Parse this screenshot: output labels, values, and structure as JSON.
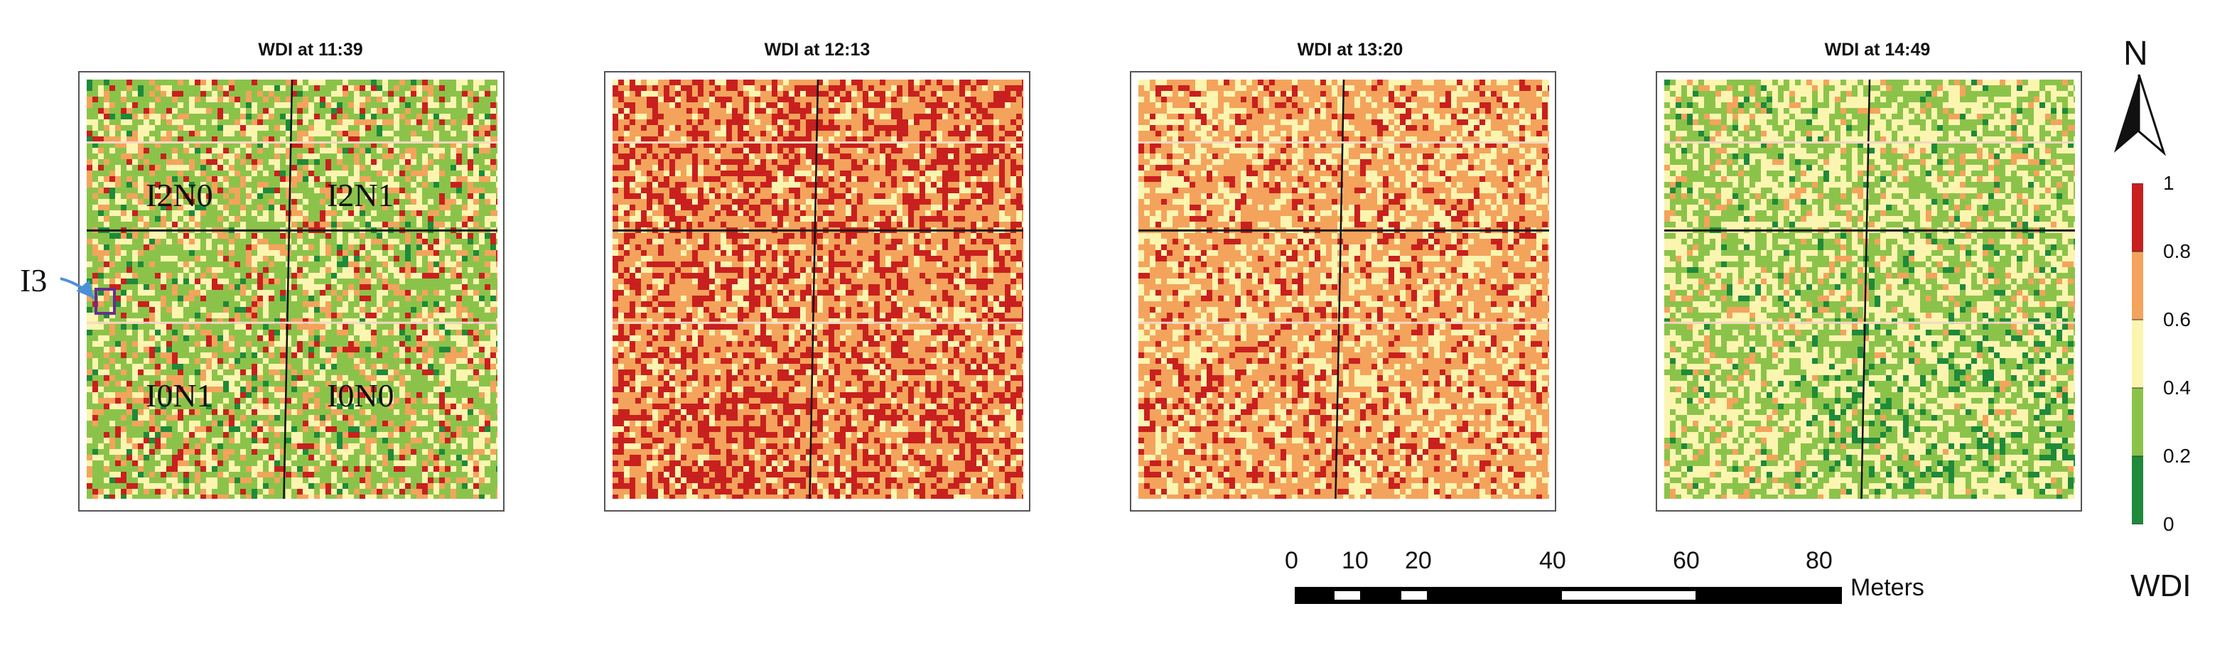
{
  "panels": [
    {
      "title": "WDI at 11:39",
      "mix": [
        0.07,
        0.48,
        0.24,
        0.15,
        0.06
      ]
    },
    {
      "title": "WDI at 12:13",
      "mix": [
        0.0,
        0.0,
        0.17,
        0.48,
        0.35
      ]
    },
    {
      "title": "WDI at 13:20",
      "mix": [
        0.0,
        0.0,
        0.32,
        0.53,
        0.15
      ]
    },
    {
      "title": "WDI at 14:49",
      "mix": [
        0.05,
        0.42,
        0.43,
        0.1,
        0.0
      ]
    }
  ],
  "plot_labels": {
    "i2n0": "I2N0",
    "i2n1": "I2N1",
    "i0n1": "I0N1",
    "i0n0": "I0N0",
    "i3": "I3"
  },
  "north_label": "N",
  "legend": {
    "title": "WDI",
    "ticks": [
      "1",
      "0.8",
      "0.6",
      "0.4",
      "0.2",
      "0"
    ],
    "class_colors": [
      "#1e8a3a",
      "#8bc34a",
      "#fbf5b0",
      "#f4a35c",
      "#c8201e"
    ]
  },
  "scale_bar": {
    "ticks": [
      "0",
      "10",
      "20",
      "40",
      "60",
      "80"
    ],
    "unit": "Meters"
  }
}
